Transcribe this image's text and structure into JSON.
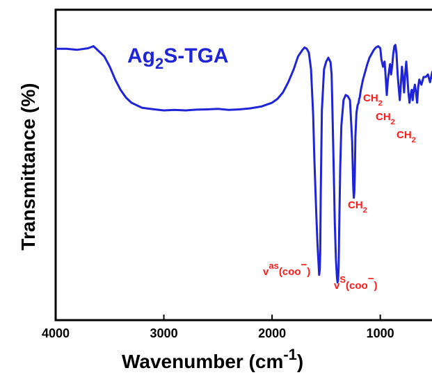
{
  "chart_data": {
    "type": "line",
    "xlabel": "Wavenumber (cm",
    "xlabel_sup": "-1",
    "xlabel_end": ")",
    "ylabel": "Transmittance (%)",
    "xlim": [
      4000,
      400
    ],
    "x_reversed": true,
    "xticks": [
      4000,
      3000,
      2000,
      1000
    ],
    "yticks": [],
    "grid": false,
    "ylim": [
      0,
      100
    ],
    "series": [
      {
        "name": "Ag2S-TGA",
        "color": "#1f24d6",
        "x": [
          4000,
          3900,
          3800,
          3700,
          3650,
          3600,
          3550,
          3500,
          3450,
          3400,
          3350,
          3300,
          3250,
          3200,
          3100,
          3000,
          2900,
          2800,
          2700,
          2600,
          2500,
          2400,
          2300,
          2200,
          2100,
          2000,
          1950,
          1900,
          1850,
          1800,
          1760,
          1720,
          1700,
          1680,
          1660,
          1640,
          1620,
          1610,
          1600,
          1590,
          1580,
          1570,
          1565,
          1560,
          1555,
          1550,
          1540,
          1520,
          1500,
          1480,
          1460,
          1450,
          1440,
          1430,
          1420,
          1410,
          1400,
          1395,
          1390,
          1385,
          1380,
          1370,
          1360,
          1340,
          1320,
          1300,
          1280,
          1260,
          1250,
          1245,
          1240,
          1235,
          1230,
          1220,
          1210,
          1200,
          1195,
          1190,
          1180,
          1160,
          1140,
          1120,
          1100,
          1080,
          1060,
          1040,
          1020,
          1000,
          990,
          975,
          960,
          950,
          940,
          930,
          920,
          910,
          900,
          890,
          880,
          870,
          860,
          850,
          840,
          830,
          820,
          810,
          800,
          790,
          780,
          770,
          760,
          750,
          740,
          730,
          720,
          710,
          700,
          690,
          680,
          670,
          660,
          650,
          640,
          620,
          600,
          580,
          560,
          540,
          520,
          500,
          480,
          460,
          440,
          420,
          400
        ],
        "y": [
          94,
          94,
          93.6,
          94.2,
          95,
          93,
          91,
          87,
          82,
          78,
          75,
          73,
          72,
          71,
          70.5,
          70,
          70.2,
          70,
          70.3,
          70.4,
          70.6,
          70.2,
          70.4,
          70.8,
          71.5,
          73,
          74.5,
          77,
          81,
          86,
          91,
          93.5,
          94.5,
          94,
          92.5,
          86,
          68,
          52,
          40,
          28,
          18,
          10,
          6,
          8,
          14,
          38,
          70,
          86,
          89,
          90.5,
          88.8,
          84,
          66,
          46,
          26,
          12,
          5,
          3,
          4,
          9,
          24,
          48,
          64,
          74,
          76,
          75.5,
          74,
          58,
          40,
          36,
          38,
          46,
          60,
          69,
          72,
          73,
          74.5,
          75,
          78,
          82,
          85,
          88,
          90.5,
          92,
          93.5,
          94.5,
          95,
          94.2,
          90,
          87,
          89,
          83,
          76,
          82,
          85,
          88,
          84,
          87.5,
          92,
          95,
          95.5,
          92,
          84,
          79,
          74,
          80,
          87,
          83,
          77,
          84,
          89,
          83,
          77,
          73,
          76,
          78,
          74,
          78,
          80,
          77,
          73,
          79,
          82,
          80,
          83,
          83,
          84,
          81,
          85,
          83,
          86,
          80,
          84,
          85,
          82
        ]
      }
    ],
    "series_label": "Ag2S-TGA",
    "series_label_main": "Ag",
    "series_label_sub": "2",
    "series_label_end": "S-TGA",
    "annotations": [
      {
        "text": "CH",
        "sub": "2",
        "x": 1100,
        "y": 33
      },
      {
        "text": "CH",
        "sub": "2",
        "x": 680,
        "y": 82
      },
      {
        "text": "CH",
        "sub": "2",
        "x": 620,
        "y": 76
      },
      {
        "text": "CH",
        "sub": "2",
        "x": 470,
        "y": 69
      }
    ],
    "annotation_vas": {
      "main": "v",
      "sup": "as",
      "body": "(coo",
      "sup2": "−",
      "end": ")"
    },
    "annotation_vs": {
      "main": "v",
      "sup": "S",
      "body": "(coo",
      "sup2": "−",
      "end": ")"
    }
  }
}
